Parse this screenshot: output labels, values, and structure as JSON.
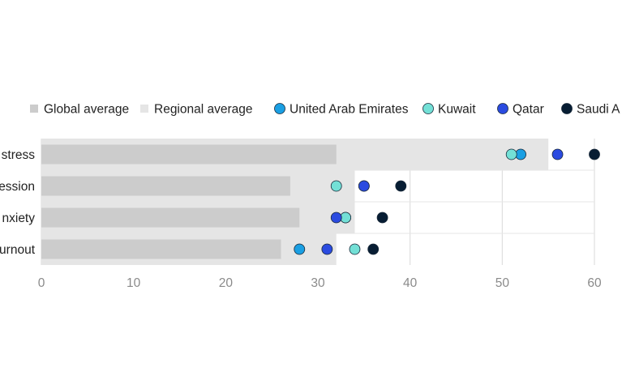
{
  "chart_data": {
    "type": "bar",
    "title": "",
    "xlabel": "",
    "ylabel": "",
    "xlim": [
      0,
      60
    ],
    "x_ticks": [
      "0",
      "10",
      "20",
      "30",
      "40",
      "50",
      "60"
    ],
    "categories": [
      "stress",
      "ession",
      "nxiety",
      "urnout"
    ],
    "bar_series": [
      {
        "name": "Global average",
        "values": [
          32,
          27,
          28,
          26
        ],
        "color": "#cccccc"
      },
      {
        "name": "Regional average",
        "values": [
          55,
          34,
          34,
          32
        ],
        "color": "#e5e5e5"
      }
    ],
    "dot_series": [
      {
        "name": "United Arab Emirates",
        "values": [
          52,
          35,
          33,
          28
        ],
        "color": "#1a9fe3"
      },
      {
        "name": "Kuwait",
        "values": [
          51,
          32,
          33,
          34
        ],
        "color": "#73e0d6"
      },
      {
        "name": "Qatar",
        "values": [
          56,
          35,
          32,
          31
        ],
        "color": "#2b4be0"
      },
      {
        "name": "Saudi A",
        "values": [
          60,
          39,
          37,
          36
        ],
        "color": "#071d33"
      }
    ],
    "grid": true,
    "legend_position": "top"
  }
}
